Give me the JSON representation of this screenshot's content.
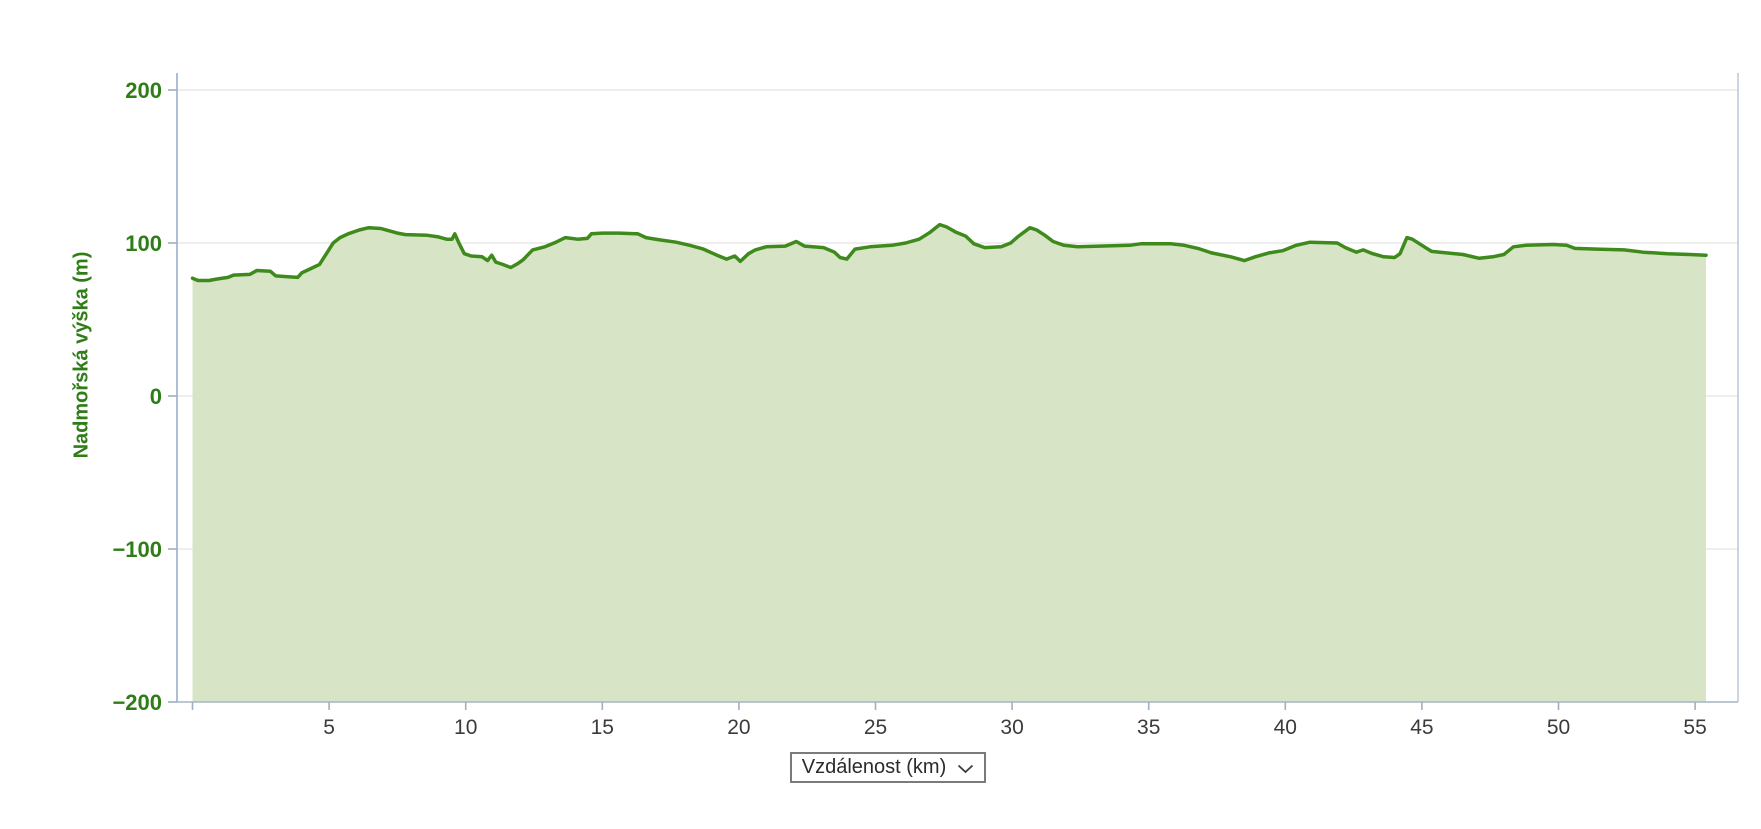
{
  "chart_data": {
    "type": "area",
    "title": "",
    "xlabel": "Vzdálenost (km)",
    "ylabel": "Nadmořská výška (m)",
    "xlim": [
      0,
      56.6
    ],
    "ylim": [
      -200,
      200
    ],
    "grid": "horizontal-only",
    "legend": "none",
    "x_ticks": [
      5,
      10,
      15,
      20,
      25,
      30,
      35,
      40,
      45,
      50,
      55
    ],
    "x_tick_labels": [
      "5",
      "10",
      "15",
      "20",
      "25",
      "30",
      "35",
      "40",
      "45",
      "50",
      "55"
    ],
    "y_ticks": [
      200,
      100,
      0,
      -100,
      -200
    ],
    "y_tick_labels": [
      "200",
      "100",
      "0",
      "−100",
      "−200"
    ],
    "colors": {
      "line": "#3f8a1c",
      "fill": "#d7e5c6",
      "axis": "#aebfd3",
      "bottom_axis": "#a6b6c6",
      "grid": "#e4e4e4",
      "tick_mark": "#9fb0c0",
      "x_tick_label": "#3b3b3b",
      "y_tick_label": "#2e7d17",
      "axis_title": "#2e7d17"
    },
    "series": [
      {
        "name": "Nadmořská výška (m)",
        "unit_x": "km",
        "unit_y": "m",
        "points": [
          [
            0,
            77
          ],
          [
            0.2,
            75.5
          ],
          [
            0.6,
            75.5
          ],
          [
            0.9,
            76.5
          ],
          [
            1.3,
            77.5
          ],
          [
            1.5,
            79
          ],
          [
            2.1,
            79.5
          ],
          [
            2.35,
            82
          ],
          [
            2.85,
            81.5
          ],
          [
            3.05,
            78.5
          ],
          [
            3.5,
            78
          ],
          [
            3.85,
            77.5
          ],
          [
            4.0,
            80.5
          ],
          [
            4.3,
            83
          ],
          [
            4.65,
            86
          ],
          [
            4.9,
            93
          ],
          [
            5.15,
            100
          ],
          [
            5.4,
            103.5
          ],
          [
            5.7,
            106
          ],
          [
            6.1,
            108.5
          ],
          [
            6.45,
            110
          ],
          [
            6.9,
            109.5
          ],
          [
            7.2,
            108
          ],
          [
            7.5,
            106.5
          ],
          [
            7.8,
            105.5
          ],
          [
            8.6,
            105
          ],
          [
            9.0,
            104
          ],
          [
            9.3,
            102.5
          ],
          [
            9.5,
            102.5
          ],
          [
            9.6,
            106
          ],
          [
            9.75,
            100
          ],
          [
            9.95,
            93
          ],
          [
            10.2,
            91.5
          ],
          [
            10.6,
            91
          ],
          [
            10.8,
            88.5
          ],
          [
            10.95,
            92
          ],
          [
            11.1,
            87.5
          ],
          [
            11.35,
            86
          ],
          [
            11.65,
            84
          ],
          [
            11.9,
            86.5
          ],
          [
            12.1,
            89
          ],
          [
            12.45,
            95.5
          ],
          [
            12.9,
            97.5
          ],
          [
            13.3,
            100.5
          ],
          [
            13.65,
            103.5
          ],
          [
            14.1,
            102.5
          ],
          [
            14.45,
            103
          ],
          [
            14.6,
            106
          ],
          [
            15.0,
            106.5
          ],
          [
            15.6,
            106.5
          ],
          [
            16.3,
            106
          ],
          [
            16.6,
            103.5
          ],
          [
            17.1,
            102
          ],
          [
            17.7,
            100.5
          ],
          [
            18.2,
            98.5
          ],
          [
            18.7,
            96
          ],
          [
            19.2,
            92
          ],
          [
            19.55,
            89.5
          ],
          [
            19.85,
            91.5
          ],
          [
            20.05,
            88
          ],
          [
            20.35,
            93
          ],
          [
            20.6,
            95.5
          ],
          [
            21.0,
            97.5
          ],
          [
            21.7,
            98
          ],
          [
            22.1,
            101
          ],
          [
            22.4,
            98
          ],
          [
            23.1,
            97
          ],
          [
            23.5,
            94
          ],
          [
            23.7,
            90.5
          ],
          [
            23.95,
            89.5
          ],
          [
            24.25,
            96
          ],
          [
            24.8,
            97.5
          ],
          [
            25.6,
            98.5
          ],
          [
            26.1,
            100
          ],
          [
            26.6,
            102.5
          ],
          [
            27.0,
            107
          ],
          [
            27.35,
            112
          ],
          [
            27.6,
            110.5
          ],
          [
            27.95,
            107
          ],
          [
            28.3,
            104.5
          ],
          [
            28.6,
            99.5
          ],
          [
            29.0,
            97
          ],
          [
            29.6,
            97.5
          ],
          [
            29.95,
            100
          ],
          [
            30.2,
            104
          ],
          [
            30.5,
            108
          ],
          [
            30.65,
            110
          ],
          [
            30.9,
            108.5
          ],
          [
            31.2,
            105
          ],
          [
            31.5,
            101
          ],
          [
            31.9,
            98.5
          ],
          [
            32.4,
            97.5
          ],
          [
            33.2,
            98
          ],
          [
            34.3,
            98.5
          ],
          [
            34.7,
            99.5
          ],
          [
            35.8,
            99.5
          ],
          [
            36.3,
            98.5
          ],
          [
            36.8,
            96.5
          ],
          [
            37.3,
            93.5
          ],
          [
            38.0,
            91
          ],
          [
            38.5,
            88.5
          ],
          [
            38.9,
            91
          ],
          [
            39.4,
            93.5
          ],
          [
            39.9,
            95
          ],
          [
            40.4,
            98.5
          ],
          [
            40.9,
            100.5
          ],
          [
            41.9,
            100
          ],
          [
            42.2,
            97
          ],
          [
            42.6,
            94
          ],
          [
            42.85,
            95.5
          ],
          [
            43.2,
            93
          ],
          [
            43.6,
            91
          ],
          [
            44.0,
            90.5
          ],
          [
            44.2,
            93
          ],
          [
            44.45,
            103.5
          ],
          [
            44.65,
            102.5
          ],
          [
            45.0,
            98.5
          ],
          [
            45.35,
            94.5
          ],
          [
            45.9,
            93.5
          ],
          [
            46.5,
            92.5
          ],
          [
            47.1,
            90
          ],
          [
            47.6,
            91
          ],
          [
            48.0,
            92.5
          ],
          [
            48.35,
            97.5
          ],
          [
            48.8,
            98.5
          ],
          [
            49.8,
            99
          ],
          [
            50.3,
            98.5
          ],
          [
            50.6,
            96.5
          ],
          [
            51.4,
            96
          ],
          [
            52.4,
            95.5
          ],
          [
            53.1,
            94
          ],
          [
            54.0,
            93
          ],
          [
            54.8,
            92.5
          ],
          [
            55.4,
            92
          ]
        ]
      }
    ]
  },
  "x_axis_selector": {
    "label": "Vzdálenost (km)"
  }
}
